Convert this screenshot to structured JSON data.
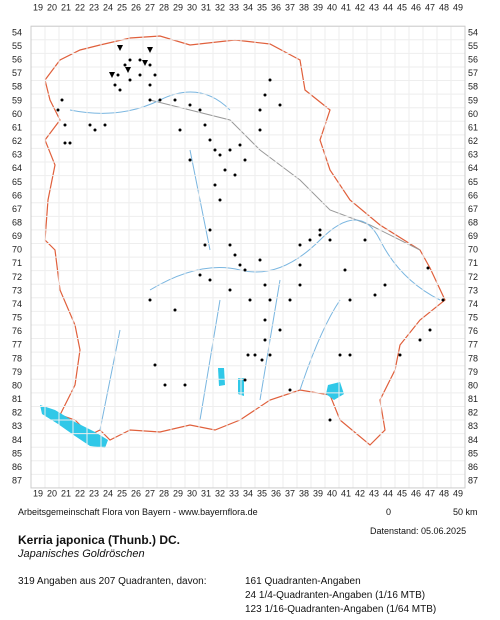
{
  "x_labels": [
    19,
    20,
    21,
    22,
    23,
    24,
    25,
    26,
    27,
    28,
    29,
    30,
    31,
    32,
    33,
    34,
    35,
    36,
    37,
    38,
    39,
    40,
    41,
    42,
    43,
    44,
    45,
    46,
    47,
    48,
    49
  ],
  "y_labels": [
    54,
    55,
    56,
    57,
    58,
    59,
    60,
    61,
    62,
    63,
    64,
    65,
    66,
    67,
    68,
    69,
    70,
    71,
    72,
    73,
    74,
    75,
    76,
    77,
    78,
    79,
    80,
    81,
    82,
    83,
    84,
    85,
    86,
    87
  ],
  "credit": "Arbeitsgemeinschaft Flora von Bayern - www.bayernflora.de",
  "scale": {
    "start": "0",
    "end": "50 km"
  },
  "date": "Datenstand: 05.06.2025",
  "title": "Kerria japonica (Thunb.) DC.",
  "subtitle": "Japanisches Goldröschen",
  "summary": "319 Angaben aus 207 Quadranten, davon:",
  "counts": [
    "161 Quadranten-Angaben",
    "24 1/4-Quadranten-Angaben (1/16 MTB)",
    "123 1/16-Quadranten-Angaben (1/64 MTB)"
  ]
}
